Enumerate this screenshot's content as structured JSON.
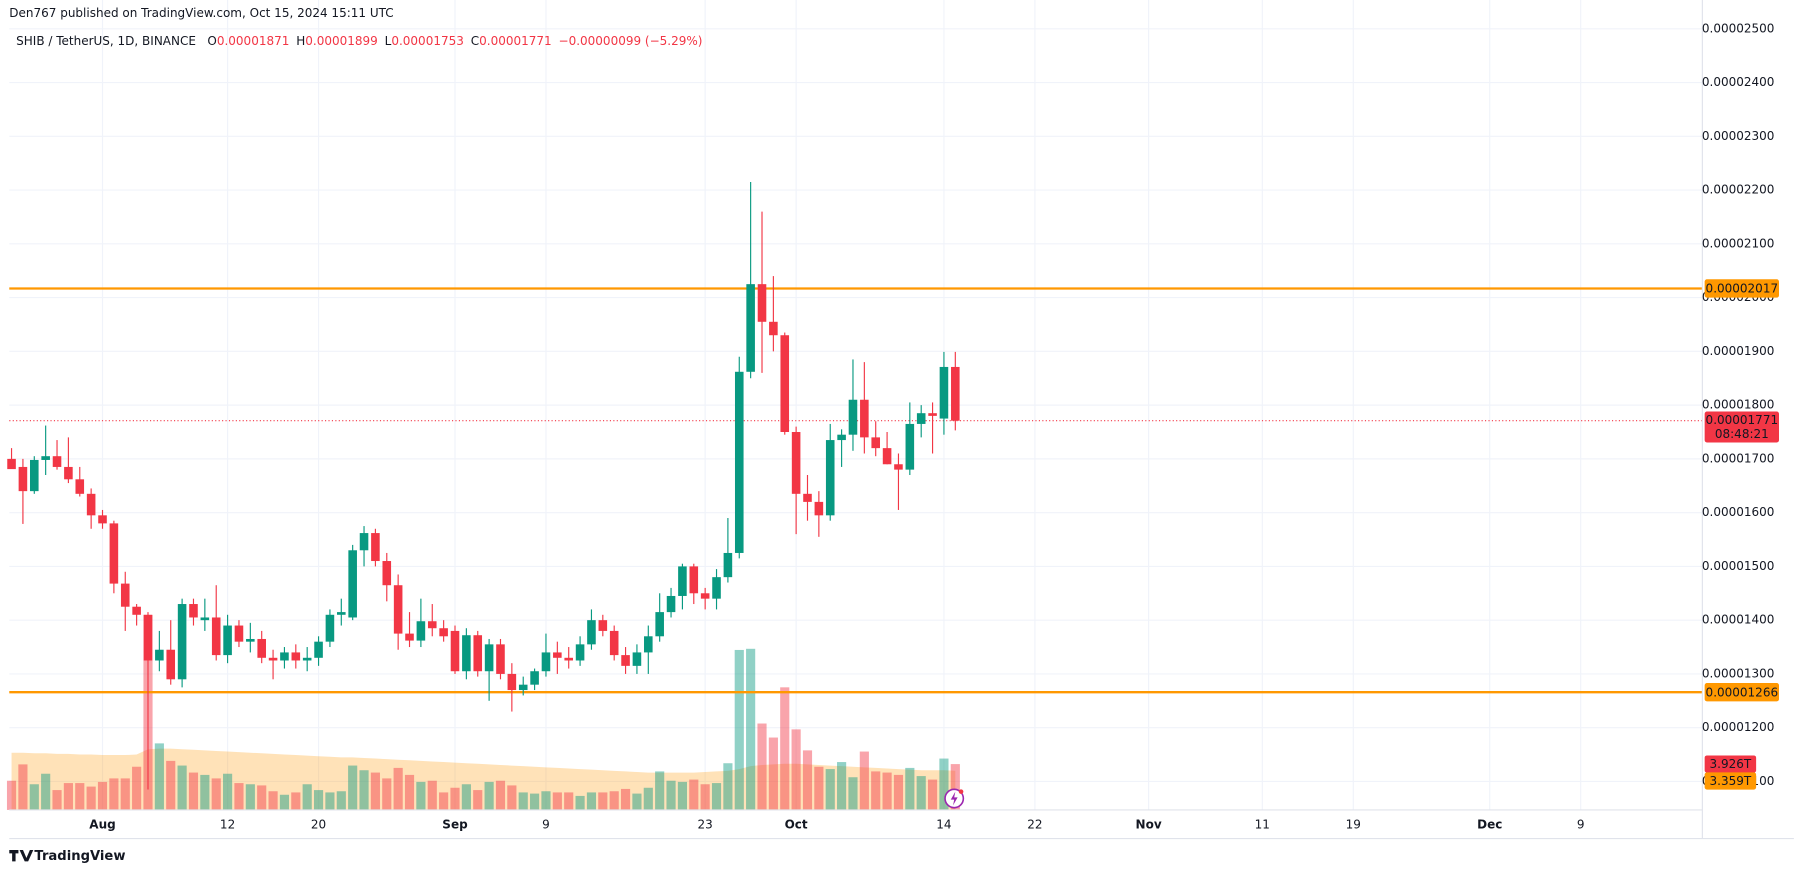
{
  "chart_data": {
    "type": "candlestick",
    "published": "Den767 published on TradingView.com, Oct 15, 2024 15:11 UTC",
    "symbol": "SHIB / TetherUS, 1D, BINANCE",
    "ohlc_labels": {
      "o": "O",
      "h": "H",
      "l": "L",
      "c": "C"
    },
    "change": "−0.00000099 (−5.29%)",
    "countdown": "08:48:21",
    "brand": "TradingView",
    "up_color": "#089981",
    "down_color": "#f23645",
    "level_color": "#ff9800",
    "grid": true,
    "open": [
      1.7e-05,
      1.685e-05,
      1.64e-05,
      1.698e-05,
      1.705e-05,
      1.685e-05,
      1.662e-05,
      1.635e-05,
      1.595e-05,
      1.58e-05,
      1.468e-05,
      1.425e-05,
      1.41e-05,
      1.325e-05,
      1.345e-05,
      1.29e-05,
      1.43e-05,
      1.4e-05,
      1.405e-05,
      1.335e-05,
      1.39e-05,
      1.36e-05,
      1.365e-05,
      1.33e-05,
      1.325e-05,
      1.34e-05,
      1.325e-05,
      1.33e-05,
      1.36e-05,
      1.41e-05,
      1.405e-05,
      1.53e-05,
      1.562e-05,
      1.51e-05,
      1.465e-05,
      1.375e-05,
      1.362e-05,
      1.398e-05,
      1.385e-05,
      1.38e-05,
      1.305e-05,
      1.372e-05,
      1.305e-05,
      1.355e-05,
      1.3e-05,
      1.27e-05,
      1.28e-05,
      1.305e-05,
      1.34e-05,
      1.33e-05,
      1.325e-05,
      1.355e-05,
      1.4e-05,
      1.38e-05,
      1.335e-05,
      1.315e-05,
      1.34e-05,
      1.37e-05,
      1.415e-05,
      1.445e-05,
      1.5e-05,
      1.45e-05,
      1.44e-05,
      1.48e-05,
      1.525e-05,
      1.862e-05,
      2.025e-05,
      1.955e-05,
      1.93e-05,
      1.75e-05,
      1.635e-05,
      1.62e-05,
      1.595e-05,
      1.735e-05,
      1.745e-05,
      1.81e-05,
      1.74e-05,
      1.72e-05,
      1.69e-05,
      1.68e-05,
      1.765e-05,
      1.785e-05,
      1.775e-05,
      1.871e-05
    ],
    "high": [
      1.72e-05,
      1.7e-05,
      1.705e-05,
      1.762e-05,
      1.735e-05,
      1.74e-05,
      1.685e-05,
      1.645e-05,
      1.605e-05,
      1.585e-05,
      1.49e-05,
      1.43e-05,
      1.415e-05,
      1.38e-05,
      1.4e-05,
      1.44e-05,
      1.44e-05,
      1.44e-05,
      1.465e-05,
      1.41e-05,
      1.4e-05,
      1.395e-05,
      1.38e-05,
      1.345e-05,
      1.35e-05,
      1.355e-05,
      1.35e-05,
      1.37e-05,
      1.42e-05,
      1.44e-05,
      1.54e-05,
      1.575e-05,
      1.57e-05,
      1.525e-05,
      1.485e-05,
      1.415e-05,
      1.44e-05,
      1.43e-05,
      1.4e-05,
      1.39e-05,
      1.385e-05,
      1.38e-05,
      1.365e-05,
      1.365e-05,
      1.32e-05,
      1.295e-05,
      1.31e-05,
      1.375e-05,
      1.36e-05,
      1.35e-05,
      1.37e-05,
      1.42e-05,
      1.41e-05,
      1.39e-05,
      1.35e-05,
      1.355e-05,
      1.39e-05,
      1.45e-05,
      1.46e-05,
      1.505e-05,
      1.505e-05,
      1.46e-05,
      1.495e-05,
      1.59e-05,
      1.89e-05,
      2.215e-05,
      2.16e-05,
      2.04e-05,
      1.935e-05,
      1.76e-05,
      1.67e-05,
      1.64e-05,
      1.765e-05,
      1.755e-05,
      1.885e-05,
      1.88e-05,
      1.77e-05,
      1.75e-05,
      1.71e-05,
      1.805e-05,
      1.8e-05,
      1.805e-05,
      1.899e-05,
      1.899e-05
    ],
    "low": [
      1.69e-05,
      1.579e-05,
      1.635e-05,
      1.67e-05,
      1.68e-05,
      1.655e-05,
      1.63e-05,
      1.57e-05,
      1.57e-05,
      1.45e-05,
      1.38e-05,
      1.39e-05,
      1.085e-05,
      1.305e-05,
      1.28e-05,
      1.275e-05,
      1.39e-05,
      1.38e-05,
      1.325e-05,
      1.32e-05,
      1.35e-05,
      1.34e-05,
      1.32e-05,
      1.29e-05,
      1.31e-05,
      1.31e-05,
      1.305e-05,
      1.315e-05,
      1.35e-05,
      1.39e-05,
      1.4e-05,
      1.5e-05,
      1.5e-05,
      1.435e-05,
      1.345e-05,
      1.35e-05,
      1.35e-05,
      1.37e-05,
      1.36e-05,
      1.3e-05,
      1.29e-05,
      1.295e-05,
      1.25e-05,
      1.29e-05,
      1.23e-05,
      1.26e-05,
      1.27e-05,
      1.295e-05,
      1.3e-05,
      1.31e-05,
      1.315e-05,
      1.345e-05,
      1.37e-05,
      1.325e-05,
      1.3e-05,
      1.3e-05,
      1.3e-05,
      1.36e-05,
      1.405e-05,
      1.42e-05,
      1.43e-05,
      1.42e-05,
      1.42e-05,
      1.47e-05,
      1.515e-05,
      1.85e-05,
      1.86e-05,
      1.9e-05,
      1.745e-05,
      1.56e-05,
      1.585e-05,
      1.555e-05,
      1.585e-05,
      1.685e-05,
      1.715e-05,
      1.71e-05,
      1.705e-05,
      1.69e-05,
      1.605e-05,
      1.67e-05,
      1.74e-05,
      1.71e-05,
      1.745e-05,
      1.753e-05
    ],
    "close": [
      1.681e-05,
      1.64e-05,
      1.698e-05,
      1.705e-05,
      1.685e-05,
      1.662e-05,
      1.635e-05,
      1.595e-05,
      1.58e-05,
      1.468e-05,
      1.425e-05,
      1.41e-05,
      1.325e-05,
      1.345e-05,
      1.29e-05,
      1.43e-05,
      1.405e-05,
      1.405e-05,
      1.335e-05,
      1.39e-05,
      1.36e-05,
      1.365e-05,
      1.33e-05,
      1.325e-05,
      1.34e-05,
      1.325e-05,
      1.33e-05,
      1.36e-05,
      1.41e-05,
      1.415e-05,
      1.53e-05,
      1.562e-05,
      1.51e-05,
      1.465e-05,
      1.375e-05,
      1.362e-05,
      1.398e-05,
      1.385e-05,
      1.37e-05,
      1.305e-05,
      1.372e-05,
      1.305e-05,
      1.355e-05,
      1.3e-05,
      1.27e-05,
      1.28e-05,
      1.305e-05,
      1.34e-05,
      1.33e-05,
      1.325e-05,
      1.355e-05,
      1.4e-05,
      1.38e-05,
      1.335e-05,
      1.315e-05,
      1.34e-05,
      1.37e-05,
      1.415e-05,
      1.445e-05,
      1.5e-05,
      1.45e-05,
      1.44e-05,
      1.48e-05,
      1.525e-05,
      1.862e-05,
      2.025e-05,
      1.955e-05,
      1.93e-05,
      1.75e-05,
      1.635e-05,
      1.62e-05,
      1.595e-05,
      1.735e-05,
      1.745e-05,
      1.81e-05,
      1.74e-05,
      1.72e-05,
      1.69e-05,
      1.68e-05,
      1.765e-05,
      1.785e-05,
      1.78e-05,
      1.871e-05,
      1.771e-05
    ],
    "volume": [
      2.5,
      3.9,
      2.2,
      3.1,
      1.7,
      2.3,
      2.3,
      2.0,
      2.4,
      2.7,
      2.7,
      3.7,
      16.7,
      5.7,
      4.2,
      3.8,
      3.2,
      3.0,
      2.7,
      3.1,
      2.3,
      2.2,
      2.1,
      1.6,
      1.3,
      1.5,
      2.2,
      1.7,
      1.5,
      1.6,
      3.8,
      3.4,
      3.2,
      2.7,
      3.6,
      3.0,
      2.4,
      2.5,
      1.5,
      1.9,
      2.2,
      1.7,
      2.4,
      2.5,
      2.1,
      1.5,
      1.4,
      1.6,
      1.5,
      1.5,
      1.2,
      1.5,
      1.5,
      1.6,
      1.8,
      1.4,
      1.9,
      3.3,
      2.5,
      2.4,
      2.6,
      2.2,
      2.3,
      4.0,
      13.7,
      13.8,
      7.4,
      6.2,
      10.5,
      6.9,
      5.1,
      3.7,
      3.5,
      4.1,
      2.8,
      5.0,
      3.3,
      3.2,
      3.0,
      3.6,
      2.9,
      2.6,
      4.4,
      3.926
    ],
    "volume_ma": [
      4.9,
      4.9,
      4.85,
      4.85,
      4.8,
      4.8,
      4.75,
      4.75,
      4.7,
      4.7,
      4.7,
      4.75,
      5.2,
      5.25,
      5.25,
      5.2,
      5.15,
      5.1,
      5.05,
      5.0,
      4.95,
      4.9,
      4.85,
      4.8,
      4.75,
      4.7,
      4.65,
      4.6,
      4.55,
      4.5,
      4.5,
      4.45,
      4.4,
      4.35,
      4.3,
      4.25,
      4.2,
      4.15,
      4.1,
      4.05,
      4.0,
      3.95,
      3.9,
      3.85,
      3.8,
      3.75,
      3.7,
      3.65,
      3.6,
      3.55,
      3.5,
      3.45,
      3.4,
      3.35,
      3.3,
      3.25,
      3.2,
      3.2,
      3.2,
      3.2,
      3.2,
      3.25,
      3.3,
      3.35,
      3.5,
      3.75,
      3.85,
      3.9,
      3.95,
      3.95,
      3.9,
      3.85,
      3.8,
      3.75,
      3.7,
      3.65,
      3.6,
      3.55,
      3.5,
      3.45,
      3.4,
      3.4,
      3.4,
      3.359
    ],
    "volume_label": "3.926T",
    "volume_ma_label": "3.359T",
    "volume_lim": [
      0,
      67.4
    ],
    "levels": [
      2.017e-05,
      1.266e-05
    ],
    "xlim": [
      -0.2,
      148.7
    ],
    "xticks": [
      {
        "value": 8,
        "label": "Aug"
      },
      {
        "value": 19,
        "label": "12"
      },
      {
        "value": 27,
        "label": "20"
      },
      {
        "value": 39,
        "label": "Sep"
      },
      {
        "value": 47,
        "label": "9"
      },
      {
        "value": 61,
        "label": "23"
      },
      {
        "value": 69,
        "label": "Oct"
      },
      {
        "value": 82,
        "label": "14"
      },
      {
        "value": 90,
        "label": "22"
      },
      {
        "value": 100,
        "label": "Nov"
      },
      {
        "value": 110,
        "label": "11"
      },
      {
        "value": 118,
        "label": "19"
      },
      {
        "value": 130,
        "label": "Dec"
      },
      {
        "value": 138,
        "label": "9"
      }
    ],
    "ylim": [
      1.047e-05,
      2.511e-05
    ],
    "yticks": [
      {
        "value": 2.5e-05,
        "label": "0.00002500"
      },
      {
        "value": 2.4e-05,
        "label": "0.00002400"
      },
      {
        "value": 2.3e-05,
        "label": "0.00002300"
      },
      {
        "value": 2.2e-05,
        "label": "0.00002200"
      },
      {
        "value": 2.1e-05,
        "label": "0.00002100"
      },
      {
        "value": 2e-05,
        "label": "0.00002000"
      },
      {
        "value": 1.9e-05,
        "label": "0.00001900"
      },
      {
        "value": 1.8e-05,
        "label": "0.00001800"
      },
      {
        "value": 1.7e-05,
        "label": "0.00001700"
      },
      {
        "value": 1.6e-05,
        "label": "0.00001600"
      },
      {
        "value": 1.5e-05,
        "label": "0.00001500"
      },
      {
        "value": 1.4e-05,
        "label": "0.00001400"
      },
      {
        "value": 1.3e-05,
        "label": "0.00001300"
      },
      {
        "value": 1.2e-05,
        "label": "0.00001200"
      },
      {
        "value": 1.1e-05,
        "label": "0.00001100"
      }
    ]
  }
}
